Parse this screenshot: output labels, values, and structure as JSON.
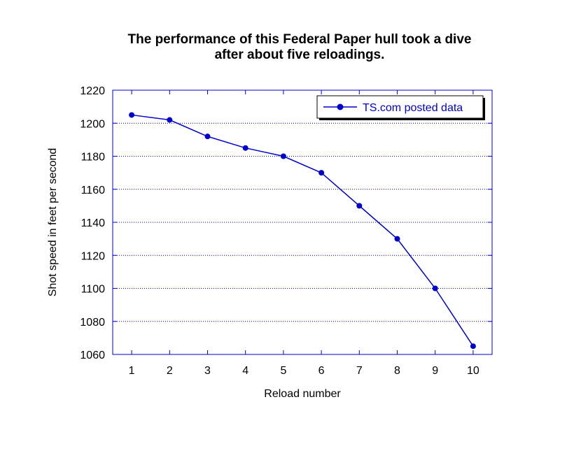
{
  "chart_data": {
    "type": "line",
    "title_lines": [
      "The performance of this Federal Paper hull took a dive",
      "after about five reloadings."
    ],
    "xlabel": "Reload number",
    "ylabel": "Shot speed in feet per second",
    "x": [
      1,
      2,
      3,
      4,
      5,
      6,
      7,
      8,
      9,
      10
    ],
    "x_ticks": [
      "1",
      "2",
      "3",
      "4",
      "5",
      "6",
      "7",
      "8",
      "9",
      "10"
    ],
    "ylim": [
      1060,
      1220
    ],
    "y_ticks": [
      1060,
      1080,
      1100,
      1120,
      1140,
      1160,
      1180,
      1200,
      1220
    ],
    "grid": "horizontal dotted",
    "legend_position": "top-right",
    "series": [
      {
        "name": "TS.com posted data",
        "color": "#0000cc",
        "values": [
          1205,
          1202,
          1192,
          1185,
          1180,
          1170,
          1150,
          1130,
          1100,
          1065
        ]
      }
    ]
  }
}
